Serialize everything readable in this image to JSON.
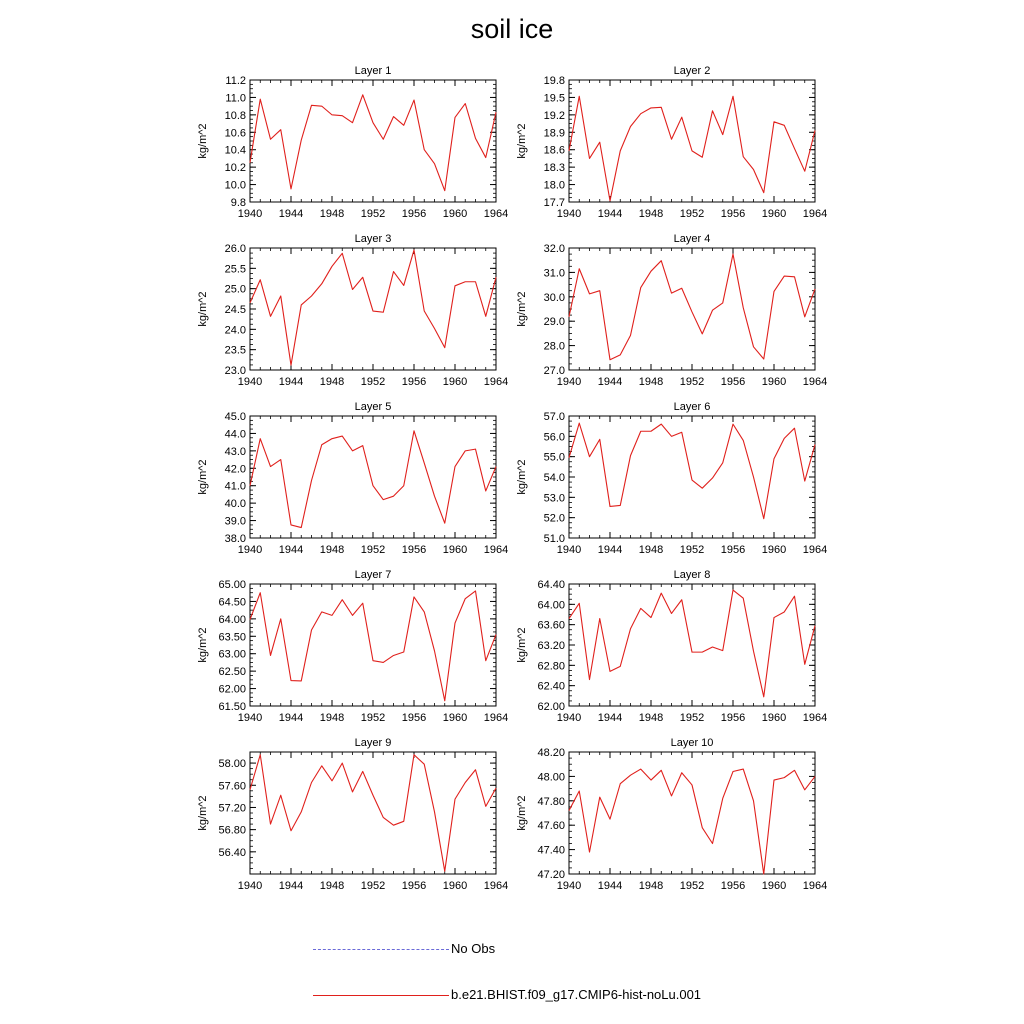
{
  "title": "soil ice",
  "legend": [
    {
      "label": "No Obs",
      "color": "#6a6ad8",
      "dash": true
    },
    {
      "label": "b.e21.BHIST.f09_g17.CMIP6-hist-noLu.001",
      "color": "#e0201c",
      "dash": false
    }
  ],
  "chart_data": [
    {
      "type": "line",
      "title": "Layer 1",
      "ylabel": "kg/m^2",
      "x": [
        1940,
        1941,
        1942,
        1943,
        1944,
        1945,
        1946,
        1947,
        1948,
        1949,
        1950,
        1951,
        1952,
        1953,
        1954,
        1955,
        1956,
        1957,
        1958,
        1959,
        1960,
        1961,
        1962,
        1963,
        1964
      ],
      "xticks": [
        1940,
        1944,
        1948,
        1952,
        1956,
        1960,
        1964
      ],
      "xlim": [
        1940,
        1964
      ],
      "yticks": [
        9.8,
        10.0,
        10.2,
        10.4,
        10.6,
        10.8,
        11.0,
        11.2
      ],
      "ytick_labels": [
        "9.8",
        "10.0",
        "10.2",
        "10.4",
        "10.6",
        "10.8",
        "11.0",
        "11.2"
      ],
      "ylim": [
        9.8,
        11.2
      ],
      "series": [
        {
          "color": "#e0201c",
          "values": [
            10.25,
            10.98,
            10.52,
            10.63,
            9.95,
            10.51,
            10.91,
            10.9,
            10.8,
            10.79,
            10.71,
            11.03,
            10.71,
            10.52,
            10.78,
            10.68,
            10.97,
            10.4,
            10.24,
            9.93,
            10.77,
            10.93,
            10.53,
            10.31,
            10.83
          ]
        }
      ]
    },
    {
      "type": "line",
      "title": "Layer 2",
      "ylabel": "kg/m^2",
      "x": [
        1940,
        1941,
        1942,
        1943,
        1944,
        1945,
        1946,
        1947,
        1948,
        1949,
        1950,
        1951,
        1952,
        1953,
        1954,
        1955,
        1956,
        1957,
        1958,
        1959,
        1960,
        1961,
        1962,
        1963,
        1964
      ],
      "xticks": [
        1940,
        1944,
        1948,
        1952,
        1956,
        1960,
        1964
      ],
      "xlim": [
        1940,
        1964
      ],
      "yticks": [
        17.7,
        18.0,
        18.3,
        18.6,
        18.9,
        19.2,
        19.5,
        19.8
      ],
      "ytick_labels": [
        "17.7",
        "18.0",
        "18.3",
        "18.6",
        "18.9",
        "19.2",
        "19.5",
        "19.8"
      ],
      "ylim": [
        17.7,
        19.8
      ],
      "series": [
        {
          "color": "#e0201c",
          "values": [
            18.58,
            19.52,
            18.45,
            18.73,
            17.72,
            18.58,
            19.0,
            19.22,
            19.32,
            19.33,
            18.78,
            19.16,
            18.58,
            18.47,
            19.27,
            18.86,
            19.52,
            18.48,
            18.26,
            17.86,
            19.08,
            19.02,
            18.62,
            18.23,
            18.93
          ]
        }
      ]
    },
    {
      "type": "line",
      "title": "Layer 3",
      "ylabel": "kg/m^2",
      "x": [
        1940,
        1941,
        1942,
        1943,
        1944,
        1945,
        1946,
        1947,
        1948,
        1949,
        1950,
        1951,
        1952,
        1953,
        1954,
        1955,
        1956,
        1957,
        1958,
        1959,
        1960,
        1961,
        1962,
        1963,
        1964
      ],
      "xticks": [
        1940,
        1944,
        1948,
        1952,
        1956,
        1960,
        1964
      ],
      "xlim": [
        1940,
        1964
      ],
      "yticks": [
        23.0,
        23.5,
        24.0,
        24.5,
        25.0,
        25.5,
        26.0
      ],
      "ytick_labels": [
        "23.0",
        "23.5",
        "24.0",
        "24.5",
        "25.0",
        "25.5",
        "26.0"
      ],
      "ylim": [
        23.0,
        26.0
      ],
      "series": [
        {
          "color": "#e0201c",
          "values": [
            24.65,
            25.22,
            24.32,
            24.82,
            23.12,
            24.6,
            24.82,
            25.12,
            25.55,
            25.87,
            24.98,
            25.28,
            24.45,
            24.42,
            25.42,
            25.08,
            25.95,
            24.45,
            24.02,
            23.55,
            25.07,
            25.17,
            25.17,
            24.32,
            25.28
          ]
        }
      ]
    },
    {
      "type": "line",
      "title": "Layer 4",
      "ylabel": "kg/m^2",
      "x": [
        1940,
        1941,
        1942,
        1943,
        1944,
        1945,
        1946,
        1947,
        1948,
        1949,
        1950,
        1951,
        1952,
        1953,
        1954,
        1955,
        1956,
        1957,
        1958,
        1959,
        1960,
        1961,
        1962,
        1963,
        1964
      ],
      "xticks": [
        1940,
        1944,
        1948,
        1952,
        1956,
        1960,
        1964
      ],
      "xlim": [
        1940,
        1964
      ],
      "yticks": [
        27.0,
        28.0,
        29.0,
        30.0,
        31.0,
        32.0
      ],
      "ytick_labels": [
        "27.0",
        "28.0",
        "29.0",
        "30.0",
        "31.0",
        "32.0"
      ],
      "ylim": [
        27.0,
        32.0
      ],
      "series": [
        {
          "color": "#e0201c",
          "values": [
            29.18,
            31.15,
            30.12,
            30.25,
            27.42,
            27.62,
            28.42,
            30.38,
            31.05,
            31.48,
            30.15,
            30.35,
            29.38,
            28.48,
            29.45,
            29.75,
            31.75,
            29.55,
            27.95,
            27.45,
            30.22,
            30.85,
            30.82,
            29.18,
            30.32
          ]
        }
      ]
    },
    {
      "type": "line",
      "title": "Layer 5",
      "ylabel": "kg/m^2",
      "x": [
        1940,
        1941,
        1942,
        1943,
        1944,
        1945,
        1946,
        1947,
        1948,
        1949,
        1950,
        1951,
        1952,
        1953,
        1954,
        1955,
        1956,
        1957,
        1958,
        1959,
        1960,
        1961,
        1962,
        1963,
        1964
      ],
      "xticks": [
        1940,
        1944,
        1948,
        1952,
        1956,
        1960,
        1964
      ],
      "xlim": [
        1940,
        1964
      ],
      "yticks": [
        38.0,
        39.0,
        40.0,
        41.0,
        42.0,
        43.0,
        44.0,
        45.0
      ],
      "ytick_labels": [
        "38.0",
        "39.0",
        "40.0",
        "41.0",
        "42.0",
        "43.0",
        "44.0",
        "45.0"
      ],
      "ylim": [
        38.0,
        45.0
      ],
      "series": [
        {
          "color": "#e0201c",
          "values": [
            41.0,
            43.7,
            42.1,
            42.5,
            38.75,
            38.6,
            41.3,
            43.35,
            43.7,
            43.85,
            43.0,
            43.3,
            41.0,
            40.2,
            40.4,
            41.0,
            44.15,
            42.3,
            40.4,
            38.85,
            42.1,
            43.0,
            43.1,
            40.7,
            42.1
          ]
        }
      ]
    },
    {
      "type": "line",
      "title": "Layer 6",
      "ylabel": "kg/m^2",
      "x": [
        1940,
        1941,
        1942,
        1943,
        1944,
        1945,
        1946,
        1947,
        1948,
        1949,
        1950,
        1951,
        1952,
        1953,
        1954,
        1955,
        1956,
        1957,
        1958,
        1959,
        1960,
        1961,
        1962,
        1963,
        1964
      ],
      "xticks": [
        1940,
        1944,
        1948,
        1952,
        1956,
        1960,
        1964
      ],
      "xlim": [
        1940,
        1964
      ],
      "yticks": [
        51.0,
        52.0,
        53.0,
        54.0,
        55.0,
        56.0,
        57.0
      ],
      "ytick_labels": [
        "51.0",
        "52.0",
        "53.0",
        "54.0",
        "55.0",
        "56.0",
        "57.0"
      ],
      "ylim": [
        51.0,
        57.0
      ],
      "series": [
        {
          "color": "#e0201c",
          "values": [
            54.95,
            56.65,
            55.0,
            55.85,
            52.55,
            52.6,
            55.05,
            56.25,
            56.25,
            56.6,
            56.0,
            56.2,
            53.85,
            53.45,
            53.95,
            54.7,
            56.6,
            55.8,
            54.0,
            51.95,
            54.9,
            55.9,
            56.4,
            53.8,
            55.6
          ]
        }
      ]
    },
    {
      "type": "line",
      "title": "Layer 7",
      "ylabel": "kg/m^2",
      "x": [
        1940,
        1941,
        1942,
        1943,
        1944,
        1945,
        1946,
        1947,
        1948,
        1949,
        1950,
        1951,
        1952,
        1953,
        1954,
        1955,
        1956,
        1957,
        1958,
        1959,
        1960,
        1961,
        1962,
        1963,
        1964
      ],
      "xticks": [
        1940,
        1944,
        1948,
        1952,
        1956,
        1960,
        1964
      ],
      "xlim": [
        1940,
        1964
      ],
      "yticks": [
        61.5,
        62.0,
        62.5,
        63.0,
        63.5,
        64.0,
        64.5,
        65.0
      ],
      "ytick_labels": [
        "61.50",
        "62.00",
        "62.50",
        "63.00",
        "63.50",
        "64.00",
        "64.50",
        "65.00"
      ],
      "ylim": [
        61.5,
        65.0
      ],
      "series": [
        {
          "color": "#e0201c",
          "values": [
            63.98,
            64.75,
            62.95,
            64.0,
            62.23,
            62.22,
            63.68,
            64.2,
            64.1,
            64.55,
            64.1,
            64.45,
            62.8,
            62.75,
            62.95,
            63.05,
            64.63,
            64.2,
            63.08,
            61.65,
            63.88,
            64.58,
            64.8,
            62.8,
            63.55
          ]
        }
      ]
    },
    {
      "type": "line",
      "title": "Layer 8",
      "ylabel": "kg/m^2",
      "x": [
        1940,
        1941,
        1942,
        1943,
        1944,
        1945,
        1946,
        1947,
        1948,
        1949,
        1950,
        1951,
        1952,
        1953,
        1954,
        1955,
        1956,
        1957,
        1958,
        1959,
        1960,
        1961,
        1962,
        1963,
        1964
      ],
      "xticks": [
        1940,
        1944,
        1948,
        1952,
        1956,
        1960,
        1964
      ],
      "xlim": [
        1940,
        1964
      ],
      "yticks": [
        62.0,
        62.4,
        62.8,
        63.2,
        63.6,
        64.0,
        64.4
      ],
      "ytick_labels": [
        "62.00",
        "62.40",
        "62.80",
        "63.20",
        "63.60",
        "64.00",
        "64.40"
      ],
      "ylim": [
        62.0,
        64.4
      ],
      "series": [
        {
          "color": "#e0201c",
          "values": [
            63.72,
            64.02,
            62.52,
            63.72,
            62.68,
            62.78,
            63.52,
            63.92,
            63.74,
            64.22,
            63.82,
            64.09,
            63.06,
            63.06,
            63.16,
            63.09,
            64.28,
            64.12,
            63.08,
            62.18,
            63.74,
            63.85,
            64.16,
            62.82,
            63.58
          ]
        }
      ]
    },
    {
      "type": "line",
      "title": "Layer 9",
      "ylabel": "kg/m^2",
      "x": [
        1940,
        1941,
        1942,
        1943,
        1944,
        1945,
        1946,
        1947,
        1948,
        1949,
        1950,
        1951,
        1952,
        1953,
        1954,
        1955,
        1956,
        1957,
        1958,
        1959,
        1960,
        1961,
        1962,
        1963,
        1964
      ],
      "xticks": [
        1940,
        1944,
        1948,
        1952,
        1956,
        1960,
        1964
      ],
      "xlim": [
        1940,
        1964
      ],
      "yticks": [
        56.4,
        56.8,
        57.2,
        57.6,
        58.0
      ],
      "ytick_labels": [
        "56.40",
        "56.80",
        "57.20",
        "57.60",
        "58.00"
      ],
      "ylim": [
        56.0,
        58.2
      ],
      "series": [
        {
          "color": "#e0201c",
          "values": [
            57.52,
            58.15,
            56.9,
            57.42,
            56.78,
            57.12,
            57.65,
            57.95,
            57.68,
            58.0,
            57.48,
            57.85,
            57.42,
            57.02,
            56.88,
            56.95,
            58.15,
            57.98,
            57.12,
            56.05,
            57.35,
            57.65,
            57.88,
            57.22,
            57.55
          ]
        }
      ]
    },
    {
      "type": "line",
      "title": "Layer 10",
      "ylabel": "kg/m^2",
      "x": [
        1940,
        1941,
        1942,
        1943,
        1944,
        1945,
        1946,
        1947,
        1948,
        1949,
        1950,
        1951,
        1952,
        1953,
        1954,
        1955,
        1956,
        1957,
        1958,
        1959,
        1960,
        1961,
        1962,
        1963,
        1964
      ],
      "xticks": [
        1940,
        1944,
        1948,
        1952,
        1956,
        1960,
        1964
      ],
      "xlim": [
        1940,
        1964
      ],
      "yticks": [
        47.2,
        47.4,
        47.6,
        47.8,
        48.0,
        48.2
      ],
      "ytick_labels": [
        "47.20",
        "47.40",
        "47.60",
        "47.80",
        "48.00",
        "48.20"
      ],
      "ylim": [
        47.2,
        48.2
      ],
      "series": [
        {
          "color": "#e0201c",
          "values": [
            47.72,
            47.88,
            47.38,
            47.83,
            47.65,
            47.94,
            48.01,
            48.06,
            47.97,
            48.05,
            47.84,
            48.03,
            47.93,
            47.58,
            47.45,
            47.82,
            48.04,
            48.06,
            47.8,
            47.2,
            47.97,
            47.99,
            48.05,
            47.89,
            48.0
          ]
        }
      ]
    }
  ]
}
